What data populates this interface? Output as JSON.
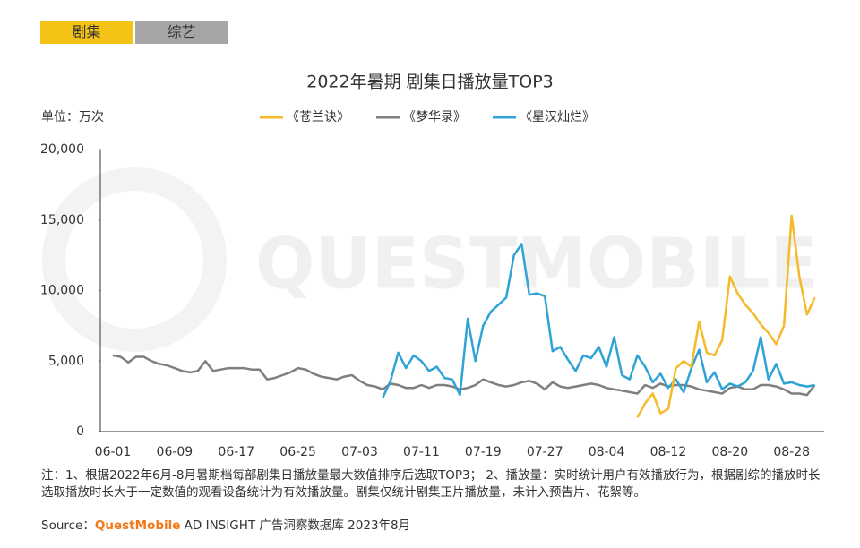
{
  "tabs": [
    "剧集",
    "综艺"
  ],
  "chart_data": {
    "type": "line",
    "title": "2022年暑期 剧集日播放量TOP3",
    "unit": "单位：万次",
    "watermark": "QUESTMOBILE",
    "categories": [
      "06-01",
      null,
      null,
      null,
      null,
      null,
      null,
      null,
      "06-09",
      null,
      null,
      null,
      null,
      null,
      null,
      null,
      "06-17",
      null,
      null,
      null,
      null,
      null,
      null,
      null,
      "06-25",
      null,
      null,
      null,
      null,
      null,
      null,
      null,
      "07-03",
      null,
      null,
      null,
      null,
      null,
      null,
      null,
      "07-11",
      null,
      null,
      null,
      null,
      null,
      null,
      null,
      "07-19",
      null,
      null,
      null,
      null,
      null,
      null,
      null,
      "07-27",
      null,
      null,
      null,
      null,
      null,
      null,
      null,
      "08-04",
      null,
      null,
      null,
      null,
      null,
      null,
      null,
      "08-12",
      null,
      null,
      null,
      null,
      null,
      null,
      null,
      "08-20",
      null,
      null,
      null,
      null,
      null,
      null,
      null,
      "08-28",
      null,
      null,
      null
    ],
    "series": [
      {
        "name": "《苍兰诀》",
        "color": "#f5b92a",
        "values": [
          null,
          null,
          null,
          null,
          null,
          null,
          null,
          null,
          null,
          null,
          null,
          null,
          null,
          null,
          null,
          null,
          null,
          null,
          null,
          null,
          null,
          null,
          null,
          null,
          null,
          null,
          null,
          null,
          null,
          null,
          null,
          null,
          null,
          null,
          null,
          null,
          null,
          null,
          null,
          null,
          null,
          null,
          null,
          null,
          null,
          null,
          null,
          null,
          null,
          null,
          null,
          null,
          null,
          null,
          null,
          null,
          null,
          null,
          null,
          null,
          null,
          null,
          null,
          null,
          null,
          null,
          null,
          null,
          1000,
          2000,
          2700,
          1300,
          1600,
          4500,
          5000,
          4600,
          7800,
          5600,
          5400,
          6500,
          11000,
          9800,
          9000,
          8400,
          7600,
          7000,
          6200,
          7500,
          15300,
          11000,
          8300,
          9500
        ]
      },
      {
        "name": "《梦华录》",
        "color": "#7f7f7f",
        "values": [
          5400,
          5300,
          4900,
          5300,
          5300,
          5000,
          4800,
          4700,
          4500,
          4300,
          4200,
          4300,
          5000,
          4300,
          4400,
          4500,
          4500,
          4500,
          4400,
          4400,
          3700,
          3800,
          4000,
          4200,
          4500,
          4400,
          4100,
          3900,
          3800,
          3700,
          3900,
          4000,
          3600,
          3300,
          3200,
          3000,
          3400,
          3300,
          3100,
          3100,
          3300,
          3100,
          3300,
          3300,
          3200,
          3000,
          3100,
          3300,
          3700,
          3500,
          3300,
          3200,
          3300,
          3500,
          3600,
          3400,
          3000,
          3500,
          3200,
          3100,
          3200,
          3300,
          3400,
          3300,
          3100,
          3000,
          2900,
          2800,
          2700,
          3300,
          3100,
          3400,
          3200,
          3300,
          3300,
          3200,
          3000,
          2900,
          2800,
          2700,
          3100,
          3200,
          3000,
          3000,
          3300,
          3300,
          3200,
          3000,
          2700,
          2700,
          2600,
          3300
        ]
      },
      {
        "name": "《星汉灿烂》",
        "color": "#2fa3d6",
        "values": [
          null,
          null,
          null,
          null,
          null,
          null,
          null,
          null,
          null,
          null,
          null,
          null,
          null,
          null,
          null,
          null,
          null,
          null,
          null,
          null,
          null,
          null,
          null,
          null,
          null,
          null,
          null,
          null,
          null,
          null,
          null,
          null,
          null,
          null,
          null,
          2400,
          3600,
          5600,
          4500,
          5400,
          5000,
          4300,
          4600,
          3800,
          3700,
          2600,
          8000,
          5000,
          7500,
          8500,
          9000,
          9500,
          12500,
          13300,
          9700,
          9800,
          9600,
          5700,
          6000,
          5100,
          4300,
          5400,
          5200,
          6000,
          4600,
          6700,
          4000,
          3700,
          5400,
          4600,
          3500,
          4100,
          3100,
          3700,
          2800,
          4500,
          5800,
          3500,
          4200,
          3000,
          3400,
          3200,
          3500,
          4300,
          6700,
          3700,
          4800,
          3400,
          3500,
          3300,
          3200,
          3300
        ]
      }
    ],
    "ylim": [
      0,
      20000
    ],
    "yticks": [
      0,
      {
        "value": 5000,
        "label": "5,000"
      },
      {
        "value": 10000,
        "label": "10,000"
      },
      {
        "value": 15000,
        "label": "15,000"
      },
      {
        "value": 20000,
        "label": "20,000"
      }
    ],
    "note": "注：1、根据2022年6月-8月暑期档每部剧集日播放量最大数值排序后选取TOP3； 2、播放量：实时统计用户有效播放行为，根据剧综的播放时长选取播放时长大于一定数值的观看设备统计为有效播放量。剧集仅统计剧集正片播放量，未计入预告片、花絮等。",
    "source": [
      "Source：",
      "QuestMobile",
      " AD INSIGHT 广告洞察数据库 2023年8月"
    ]
  }
}
